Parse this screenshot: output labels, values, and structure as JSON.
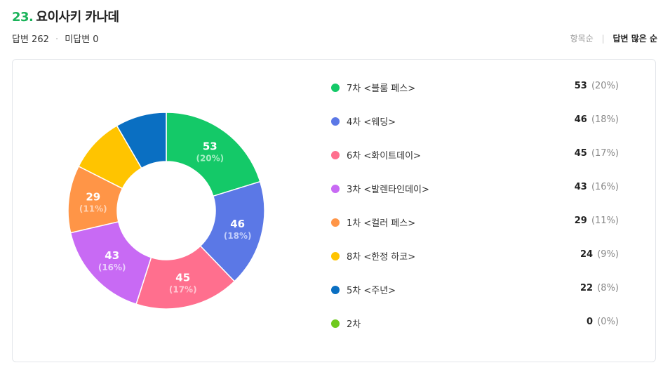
{
  "question": {
    "number": "23.",
    "title": "요이사키 카나데"
  },
  "stats": {
    "answered": "답변 262",
    "separator": "·",
    "unanswered": "미답변 0"
  },
  "sort": {
    "by_item": "항목순",
    "by_answers": "답변 많은 순"
  },
  "chart_data": {
    "type": "pie",
    "donut": true,
    "total": 262,
    "categories": [
      "7차 <블룸 페스>",
      "4차 <웨딩>",
      "6차 <화이트데이>",
      "3차 <발렌타인데이>",
      "1차 <컬러 페스>",
      "8차 <한정 하코>",
      "5차 <주년>",
      "2차"
    ],
    "values": [
      53,
      46,
      45,
      43,
      29,
      24,
      22,
      0
    ],
    "count_labels": [
      "53",
      "46",
      "45",
      "43",
      "29",
      "24",
      "22",
      "0"
    ],
    "percent_labels": [
      "(20%)",
      "(18%)",
      "(17%)",
      "(16%)",
      "(11%)",
      "(9%)",
      "(8%)",
      "(0%)"
    ],
    "colors": [
      "#14c968",
      "#5b78e6",
      "#ff6f8e",
      "#c86af4",
      "#ff9547",
      "#ffc400",
      "#0a6fc2",
      "#6fca1d"
    ],
    "pct_colors": [
      "#a4efc3",
      "#c1cdfa",
      "#ffc7d3",
      "#ead0fc",
      "#ffd3b4",
      "#ffe79e",
      "#a6cdec",
      "#c7eca4"
    ],
    "labeled_in_chart": [
      true,
      true,
      true,
      true,
      true,
      false,
      false,
      false
    ],
    "legend_placement": "right"
  }
}
